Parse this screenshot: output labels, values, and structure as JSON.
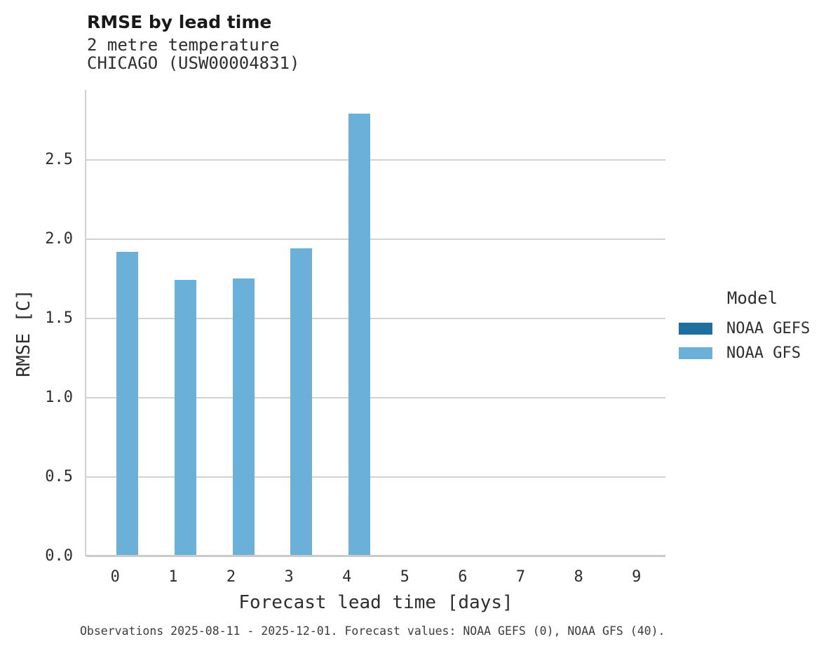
{
  "chart_data": {
    "type": "bar",
    "title": "RMSE by lead time",
    "subtitle_lines": [
      "2 metre temperature",
      "CHICAGO (USW00004831)"
    ],
    "xlabel": "Forecast lead time [days]",
    "ylabel": "RMSE [C]",
    "categories": [
      "0",
      "1",
      "2",
      "3",
      "4",
      "5",
      "6",
      "7",
      "8",
      "9"
    ],
    "series": [
      {
        "name": "NOAA GEFS",
        "color": "#1e6f9e",
        "values": [
          null,
          null,
          null,
          null,
          null,
          null,
          null,
          null,
          null,
          null
        ]
      },
      {
        "name": "NOAA GFS",
        "color": "#6ab0d8",
        "values": [
          1.92,
          1.74,
          1.75,
          1.94,
          2.79,
          null,
          null,
          null,
          null,
          null
        ]
      }
    ],
    "ylim": [
      0,
      2.94
    ],
    "ytick_values": [
      0.0,
      0.5,
      1.0,
      1.5,
      2.0,
      2.5
    ],
    "ytick_labels": [
      "0.0",
      "0.5",
      "1.0",
      "1.5",
      "2.0",
      "2.5"
    ],
    "grid": "horizontal",
    "legend_title": "Model",
    "legend_position": "right",
    "caption": "Observations 2025-08-11 - 2025-12-01. Forecast values: NOAA GEFS (0), NOAA GFS (40)."
  },
  "colors": {
    "gridline": "#d2d2d2",
    "axis_line": "#c9c9c9",
    "title_text": "#191919",
    "body_text": "#2e2e2e",
    "caption_text": "#3c3c3c"
  }
}
